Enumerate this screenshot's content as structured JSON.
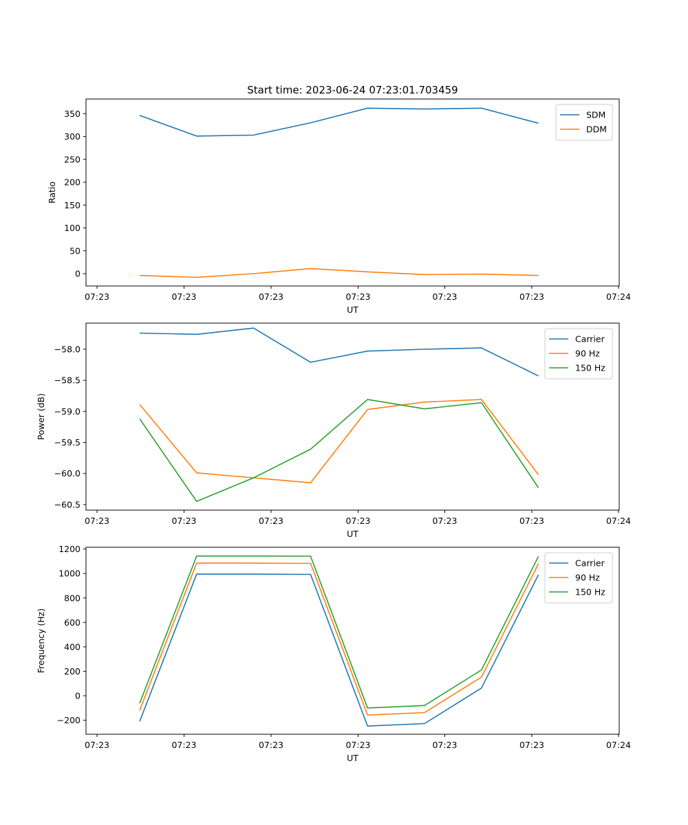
{
  "chart_data": [
    {
      "type": "line",
      "title": "Start time: 2023-06-24 07:23:01.703459",
      "xlabel": "UT",
      "ylabel": "Ratio",
      "x_tick_labels": [
        "07:23",
        "07:23",
        "07:23",
        "07:23",
        "07:23",
        "07:23",
        "07:24"
      ],
      "ylim": [
        -27,
        382
      ],
      "yticks": [
        0,
        50,
        100,
        150,
        200,
        250,
        300,
        350
      ],
      "legend": "top-right",
      "series": [
        {
          "name": "SDM",
          "color": "#1f77b4",
          "values": [
            346,
            301,
            303,
            330,
            362,
            360,
            362,
            329
          ]
        },
        {
          "name": "DDM",
          "color": "#ff7f0e",
          "values": [
            -4,
            -8,
            0,
            11,
            4,
            -2,
            -1,
            -4
          ]
        }
      ]
    },
    {
      "type": "line",
      "title": "",
      "xlabel": "UT",
      "ylabel": "Power (dB)",
      "x_tick_labels": [
        "07:23",
        "07:23",
        "07:23",
        "07:23",
        "07:23",
        "07:23",
        "07:24"
      ],
      "ylim": [
        -60.59,
        -57.58
      ],
      "yticks": [
        -60.5,
        -60.0,
        -59.5,
        -59.0,
        -58.5,
        -58.0
      ],
      "ytick_labels": [
        "−60.5",
        "−60.0",
        "−59.5",
        "−59.0",
        "−58.5",
        "−58.0"
      ],
      "legend": "top-right",
      "series": [
        {
          "name": "Carrier",
          "color": "#1f77b4",
          "values": [
            -57.74,
            -57.76,
            -57.66,
            -58.21,
            -58.03,
            -58.0,
            -57.98,
            -58.43
          ]
        },
        {
          "name": "90 Hz",
          "color": "#ff7f0e",
          "values": [
            -58.89,
            -59.99,
            -60.07,
            -60.15,
            -58.97,
            -58.85,
            -58.81,
            -60.02
          ]
        },
        {
          "name": "150 Hz",
          "color": "#2ca02c",
          "values": [
            -59.12,
            -60.45,
            -60.07,
            -59.61,
            -58.81,
            -58.96,
            -58.86,
            -60.23
          ]
        }
      ]
    },
    {
      "type": "line",
      "title": "",
      "xlabel": "UT",
      "ylabel": "Frequency (Hz)",
      "x_tick_labels": [
        "07:23",
        "07:23",
        "07:23",
        "07:23",
        "07:23",
        "07:23",
        "07:24"
      ],
      "ylim": [
        -315,
        1215
      ],
      "yticks": [
        -200,
        0,
        200,
        400,
        600,
        800,
        1000,
        1200
      ],
      "ytick_labels": [
        "−200",
        "0",
        "200",
        "400",
        "600",
        "800",
        "1000",
        "1200"
      ],
      "legend": "top-right",
      "series": [
        {
          "name": "Carrier",
          "color": "#1f77b4",
          "values": [
            -210,
            995,
            995,
            993,
            -248,
            -228,
            63,
            990
          ]
        },
        {
          "name": "90 Hz",
          "color": "#ff7f0e",
          "values": [
            -120,
            1085,
            1085,
            1083,
            -158,
            -138,
            153,
            1080
          ]
        },
        {
          "name": "150 Hz",
          "color": "#2ca02c",
          "values": [
            -62,
            1143,
            1143,
            1142,
            -100,
            -80,
            211,
            1140
          ]
        }
      ]
    }
  ]
}
